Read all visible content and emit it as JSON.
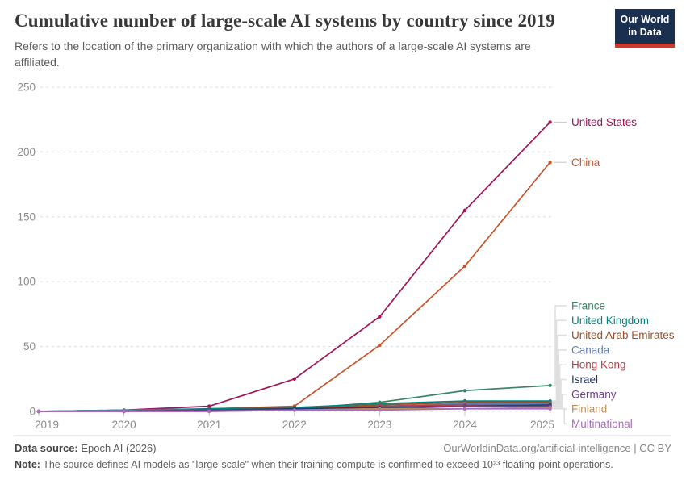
{
  "header": {
    "title": "Cumulative number of large-scale AI systems by country since 2019",
    "subtitle": "Refers to the location of the primary organization with which the authors of a large-scale AI systems are affiliated.",
    "logo_line1": "Our World",
    "logo_line2": "in Data"
  },
  "chart_data": {
    "type": "line",
    "title": "Cumulative number of large-scale AI systems by country since 2019",
    "x": [
      2019,
      2020,
      2021,
      2022,
      2023,
      2024,
      2025
    ],
    "xlabel": "",
    "ylabel": "",
    "ylim": [
      0,
      250
    ],
    "yticks": [
      0,
      50,
      100,
      150,
      200,
      250
    ],
    "grid": "horizontal-dashed",
    "legend_position": "right",
    "series": [
      {
        "name": "United States",
        "color": "#A0145A",
        "values": [
          0,
          1,
          4,
          25,
          73,
          155,
          223
        ]
      },
      {
        "name": "China",
        "color": "#C8542A",
        "values": [
          0,
          0,
          2,
          4,
          51,
          112,
          192
        ]
      },
      {
        "name": "France",
        "color": "#3C8465",
        "values": [
          0,
          0,
          1,
          2,
          7,
          16,
          20
        ]
      },
      {
        "name": "United Kingdom",
        "color": "#00847E",
        "values": [
          0,
          1,
          2,
          3,
          6,
          8,
          8
        ]
      },
      {
        "name": "United Arab Emirates",
        "color": "#9A5129",
        "values": [
          0,
          0,
          1,
          2,
          5,
          7,
          7
        ]
      },
      {
        "name": "Canada",
        "color": "#5E7CAE",
        "values": [
          0,
          1,
          1,
          2,
          4,
          6,
          6
        ]
      },
      {
        "name": "Hong Kong",
        "color": "#AF4048",
        "values": [
          0,
          0,
          1,
          2,
          4,
          5,
          5
        ]
      },
      {
        "name": "Israel",
        "color": "#223963",
        "values": [
          0,
          0,
          1,
          2,
          3,
          4,
          5
        ]
      },
      {
        "name": "Germany",
        "color": "#6D3E91",
        "values": [
          0,
          0,
          1,
          1,
          2,
          4,
          4
        ]
      },
      {
        "name": "Finland",
        "color": "#BC8E5A",
        "values": [
          0,
          0,
          0,
          1,
          2,
          2,
          3
        ]
      },
      {
        "name": "Multinational",
        "color": "#AB6BC0",
        "values": [
          0,
          0,
          0,
          1,
          1,
          2,
          2
        ]
      }
    ]
  },
  "footer": {
    "data_source_label": "Data source:",
    "data_source_value": " Epoch AI (2026)",
    "rights": "OurWorldinData.org/artificial-intelligence | CC BY",
    "note_label": "Note:",
    "note_value": " The source defines AI models as \"large-scale\" when their training compute is confirmed to exceed 10²³ floating-point operations."
  }
}
